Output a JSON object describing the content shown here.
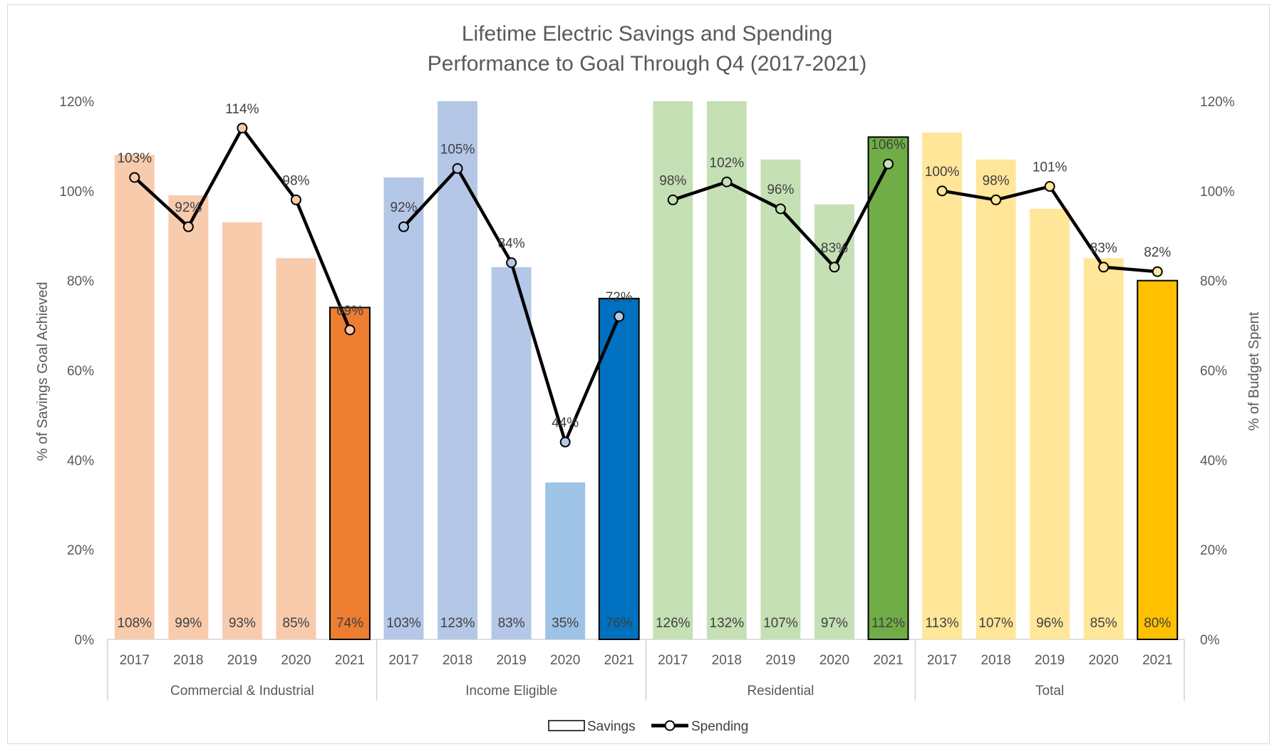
{
  "chart_data": {
    "type": "bar",
    "title_lines": [
      "Lifetime Electric Savings and Spending",
      "Performance to Goal Through Q4 (2017-2021)"
    ],
    "ylabel": "% of Savings Goal Achieved",
    "y2label": "% of Budget Spent",
    "ylim": [
      0,
      1.2
    ],
    "y2lim": [
      0,
      1.2
    ],
    "yticks": [
      "0%",
      "20%",
      "40%",
      "60%",
      "80%",
      "100%",
      "120%"
    ],
    "groups": [
      {
        "name": "Commercial & Industrial",
        "years": [
          "2017",
          "2018",
          "2019",
          "2020",
          "2021"
        ],
        "savings": [
          1.08,
          0.99,
          0.93,
          0.85,
          0.74
        ],
        "savings_labels": [
          "108%",
          "99%",
          "93%",
          "85%",
          "74%"
        ],
        "spending": [
          1.03,
          0.92,
          1.14,
          0.98,
          0.69
        ],
        "spending_labels": [
          "103%",
          "92%",
          "114%",
          "98%",
          "69%"
        ],
        "light_color": "#f8cbad",
        "dark_color": "#ed7d31"
      },
      {
        "name": "Income Eligible",
        "years": [
          "2017",
          "2018",
          "2019",
          "2020",
          "2021"
        ],
        "savings": [
          1.03,
          1.23,
          0.83,
          0.35,
          0.76
        ],
        "savings_labels": [
          "103%",
          "123%",
          "83%",
          "35%",
          "76%"
        ],
        "spending": [
          0.92,
          1.05,
          0.84,
          0.44,
          0.72
        ],
        "spending_labels": [
          "92%",
          "105%",
          "84%",
          "44%",
          "72%"
        ],
        "light_color": "#b4c7e7",
        "alt_light_color": "#9dc3e6",
        "dark_color": "#0070c0"
      },
      {
        "name": "Residential",
        "years": [
          "2017",
          "2018",
          "2019",
          "2020",
          "2021"
        ],
        "savings": [
          1.26,
          1.32,
          1.07,
          0.97,
          1.12
        ],
        "savings_labels": [
          "126%",
          "132%",
          "107%",
          "97%",
          "112%"
        ],
        "spending": [
          0.98,
          1.02,
          0.96,
          0.83,
          1.06
        ],
        "spending_labels": [
          "98%",
          "102%",
          "96%",
          "83%",
          "106%"
        ],
        "light_color": "#c5e0b4",
        "dark_color": "#70ad47"
      },
      {
        "name": "Total",
        "years": [
          "2017",
          "2018",
          "2019",
          "2020",
          "2021"
        ],
        "savings": [
          1.13,
          1.07,
          0.96,
          0.85,
          0.8
        ],
        "savings_labels": [
          "113%",
          "107%",
          "96%",
          "85%",
          "80%"
        ],
        "spending": [
          1.0,
          0.98,
          1.01,
          0.83,
          0.82
        ],
        "spending_labels": [
          "100%",
          "98%",
          "101%",
          "83%",
          "82%"
        ],
        "light_color": "#ffe699",
        "dark_color": "#ffc000"
      }
    ],
    "legend": [
      "Savings",
      "Spending"
    ],
    "legend_position": "bottom",
    "grid": false
  }
}
